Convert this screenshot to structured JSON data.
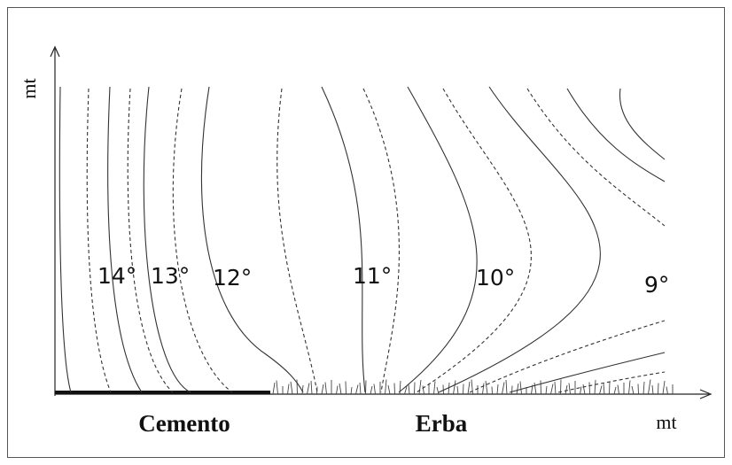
{
  "axes": {
    "y_label": "mt",
    "x_label": "mt"
  },
  "isotherms": [
    "14°",
    "13°",
    "12°",
    "11°",
    "10°",
    "9°"
  ],
  "surfaces": {
    "left": "Cemento",
    "right": "Erba"
  }
}
